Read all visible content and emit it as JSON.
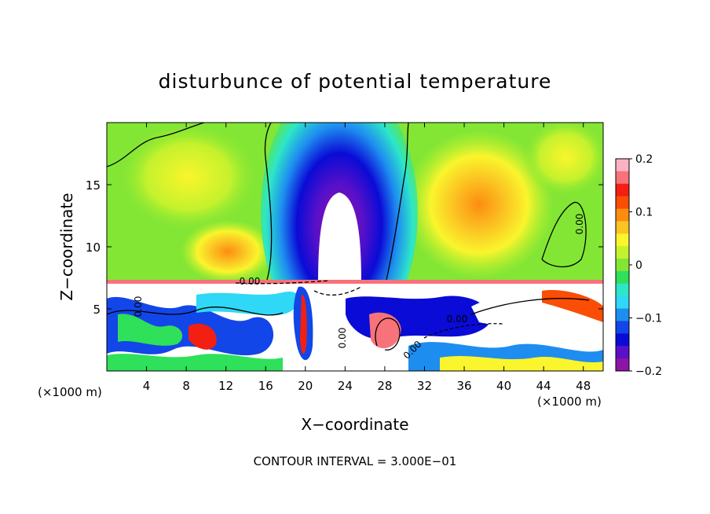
{
  "chart_data": {
    "type": "heatmap",
    "title": "disturbunce of potential temperature",
    "xlabel": "X−coordinate",
    "ylabel": "Z−coordinate",
    "x_unit_left": "(×1000 m)",
    "x_unit_right": "(×1000 m)",
    "footer": "CONTOUR INTERVAL = 3.000E−01",
    "xlim": [
      0,
      50
    ],
    "ylim": [
      0,
      20
    ],
    "x_ticks": [
      4,
      8,
      12,
      16,
      20,
      24,
      28,
      32,
      36,
      40,
      44,
      48
    ],
    "x_tick_labels": [
      "4",
      "8",
      "12",
      "16",
      "20",
      "24",
      "28",
      "32",
      "36",
      "40",
      "44",
      "48"
    ],
    "y_ticks": [
      5,
      10,
      15
    ],
    "y_tick_labels": [
      "5",
      "10",
      "15"
    ],
    "colorbar": {
      "min": -0.2,
      "max": 0.2,
      "ticks": [
        0.2,
        0.1,
        0,
        -0.1,
        -0.2
      ],
      "tick_labels": [
        "0.2",
        "0.1",
        "0",
        "−0.1",
        "−0.2"
      ],
      "colors": [
        "#fbb3c4",
        "#f8727a",
        "#f21f12",
        "#fa4d05",
        "#fc8c10",
        "#fbc423",
        "#faf52c",
        "#c4f22d",
        "#83e634",
        "#2ee05a",
        "#2de7c8",
        "#2fd8f6",
        "#1e8df0",
        "#1246e8",
        "#0a0bd6",
        "#5a10c8",
        "#8e14a8"
      ]
    },
    "contour_labels": [
      "0.00",
      "0.00",
      "0.00",
      "0.00",
      "0.00",
      "0.00"
    ]
  }
}
